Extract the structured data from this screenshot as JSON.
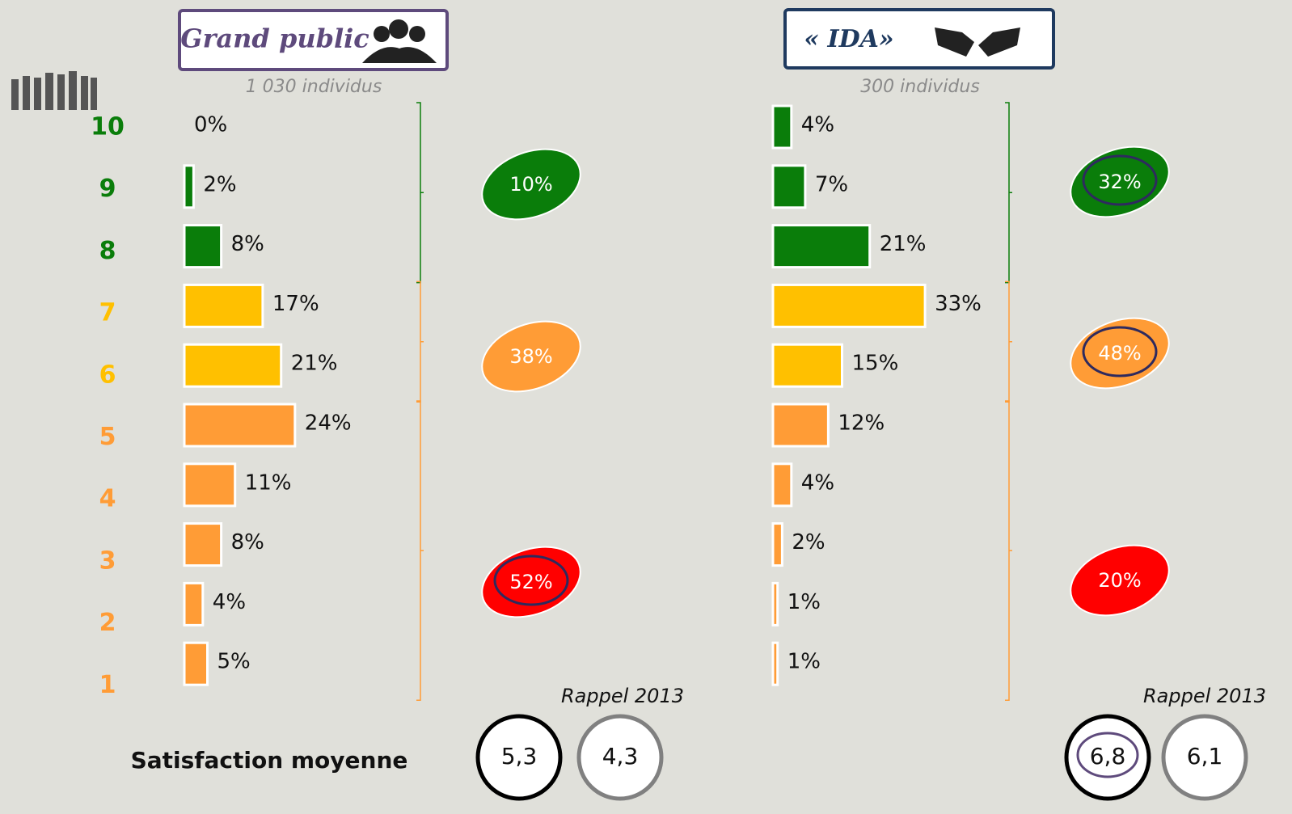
{
  "chart_data": [
    {
      "type": "bar",
      "title": "Grand public",
      "subtitle": "1 030 individus",
      "categories": [
        "10",
        "9",
        "8",
        "7",
        "6",
        "5",
        "4",
        "3",
        "2",
        "1"
      ],
      "values": [
        0,
        2,
        8,
        17,
        21,
        24,
        11,
        8,
        4,
        5
      ],
      "value_labels": [
        "0%",
        "2%",
        "8%",
        "17%",
        "21%",
        "24%",
        "11%",
        "8%",
        "4%",
        "5%"
      ],
      "colors": [
        "#0a7d0a",
        "#0a7d0a",
        "#0a7d0a",
        "#ffc000",
        "#ffc000",
        "#ff9c36",
        "#ff9c36",
        "#ff9c36",
        "#ff9c36",
        "#ff9c36"
      ],
      "groups": [
        {
          "value": 10,
          "label": "10%",
          "color": "#0a7d0a"
        },
        {
          "value": 38,
          "label": "38%",
          "color": "#ff9c36"
        },
        {
          "value": 52,
          "label": "52%",
          "color": "#ff0000"
        }
      ],
      "mean": {
        "value": 5.3,
        "label": "5,3"
      },
      "previous": {
        "value": 4.3,
        "label": "4,3"
      },
      "previous_label": "Rappel 2013"
    },
    {
      "type": "bar",
      "title": "« IDA»",
      "subtitle": "300 individus",
      "values": [
        4,
        7,
        21,
        33,
        15,
        12,
        4,
        2,
        1,
        1
      ],
      "value_labels": [
        "4%",
        "7%",
        "21%",
        "33%",
        "15%",
        "12%",
        "4%",
        "2%",
        "1%",
        "1%"
      ],
      "colors": [
        "#0a7d0a",
        "#0a7d0a",
        "#0a7d0a",
        "#ffc000",
        "#ffc000",
        "#ff9c36",
        "#ff9c36",
        "#ff9c36",
        "#ff9c36",
        "#ff9c36"
      ],
      "groups": [
        {
          "value": 32,
          "label": "32%",
          "color": "#0a7d0a"
        },
        {
          "value": 48,
          "label": "48%",
          "color": "#ff9c36"
        },
        {
          "value": 20,
          "label": "20%",
          "color": "#ff0000"
        }
      ],
      "mean": {
        "value": 6.8,
        "label": "6,8"
      },
      "previous": {
        "value": 6.1,
        "label": "6,1"
      },
      "previous_label": "Rappel 2013"
    }
  ],
  "footer_label": "Satisfaction moyenne"
}
